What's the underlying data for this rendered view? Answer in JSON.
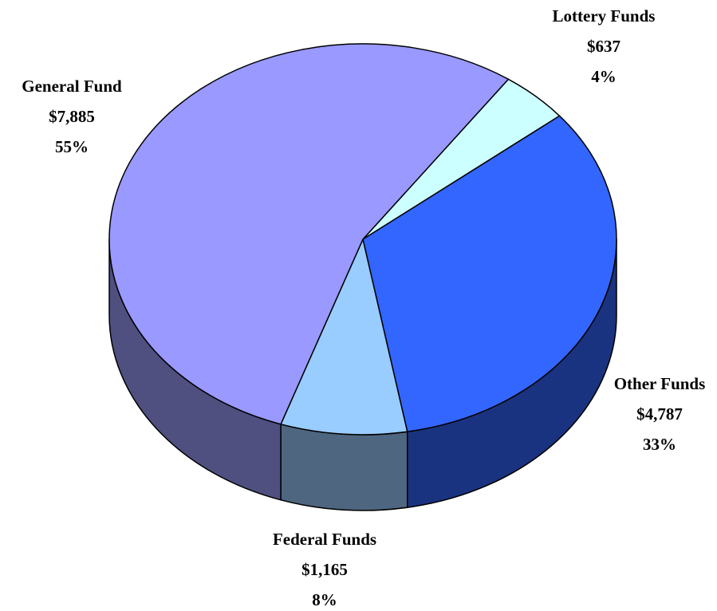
{
  "chart_data": {
    "type": "pie",
    "categories": [
      "Lottery Funds",
      "Other Funds",
      "Federal Funds",
      "General Fund"
    ],
    "values": [
      637,
      4787,
      1165,
      7885
    ],
    "value_labels": [
      "$637",
      "$4,787",
      "$1,165",
      "$7,885"
    ],
    "percents": [
      4,
      33,
      8,
      55
    ],
    "percent_labels": [
      "4%",
      "33%",
      "8%",
      "55%"
    ],
    "colors": [
      "#ccffff",
      "#3366ff",
      "#99ccff",
      "#9999ff"
    ],
    "side_colors": [
      "#6b8080",
      "#1a3380",
      "#4f6680",
      "#4f4f80"
    ]
  }
}
